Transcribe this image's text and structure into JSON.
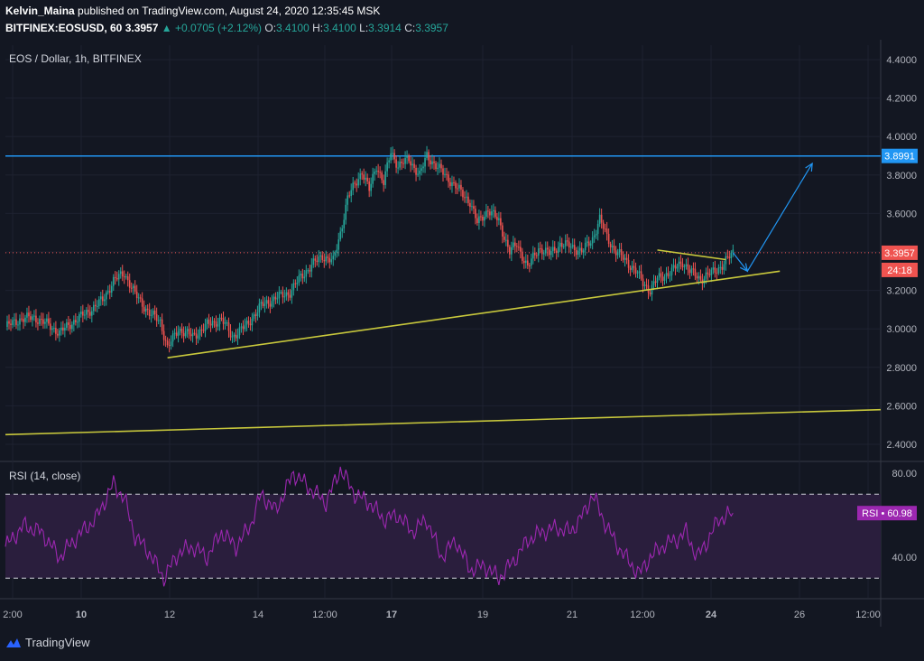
{
  "header": {
    "author": "Kelvin_Maina",
    "published": "published on TradingView.com, August 24, 2020 12:35:45 MSK",
    "symbol": "BITFINEX:EOSUSD, 60",
    "last": "3.3957",
    "change": "▲ +0.0705 (+2.12%)",
    "o_label": "O:",
    "o_value": "3.4100",
    "h_label": "H:",
    "h_value": "3.4100",
    "l_label": "L:",
    "l_value": "3.3914",
    "c_label": "C:",
    "c_value": "3.3957"
  },
  "main_pane": {
    "title": "EOS / Dollar, 1h, BITFINEX",
    "price_badge": "3.3957",
    "countdown_badge": "24:18",
    "resistance_badge": "3.8991"
  },
  "rsi_pane": {
    "title": "RSI (14, close)",
    "badge": "RSI • 60.98"
  },
  "brand": {
    "name": "TradingView",
    "icon": "tradingview-logo-icon"
  },
  "colors": {
    "background": "#131722",
    "up": "#26a69a",
    "down": "#ef5350",
    "trendline": "#c8c83c",
    "resistance": "#2196f3",
    "arrow": "#2196f3",
    "rsi": "#9c27b0",
    "rsi_band": "#2a1e3d"
  },
  "chart_data": [
    {
      "type": "candlestick",
      "title": "EOS / Dollar, 1h, BITFINEX",
      "y_ticks": [
        "4.4000",
        "4.2000",
        "4.0000",
        "3.8000",
        "3.6000",
        "3.4000",
        "3.2000",
        "3.0000",
        "2.8000",
        "2.6000",
        "2.4000"
      ],
      "ylim": [
        2.33,
        4.45
      ],
      "x_ticks": [
        "2:00",
        "10",
        "12",
        "14",
        "12:00",
        "17",
        "19",
        "21",
        "12:00",
        "24",
        "26",
        "12:00"
      ],
      "last_price": 3.3957,
      "horizontal_lines": [
        {
          "name": "resistance",
          "value": 3.8991,
          "style": "solid"
        },
        {
          "name": "last-price",
          "value": 3.3957,
          "style": "dotted"
        }
      ],
      "close_path": [
        [
          0,
          3.01
        ],
        [
          8,
          3.05
        ],
        [
          16,
          3.06
        ],
        [
          24,
          3.02
        ],
        [
          30,
          2.98
        ],
        [
          38,
          3.04
        ],
        [
          46,
          3.09
        ],
        [
          54,
          3.15
        ],
        [
          60,
          3.25
        ],
        [
          66,
          3.29
        ],
        [
          72,
          3.18
        ],
        [
          80,
          3.08
        ],
        [
          86,
          3.04
        ],
        [
          90,
          2.9
        ],
        [
          96,
          3.0
        ],
        [
          104,
          2.96
        ],
        [
          112,
          3.02
        ],
        [
          120,
          3.05
        ],
        [
          126,
          2.96
        ],
        [
          134,
          3.02
        ],
        [
          142,
          3.12
        ],
        [
          150,
          3.16
        ],
        [
          158,
          3.19
        ],
        [
          164,
          3.27
        ],
        [
          170,
          3.33
        ],
        [
          176,
          3.38
        ],
        [
          182,
          3.35
        ],
        [
          186,
          3.5
        ],
        [
          190,
          3.68
        ],
        [
          194,
          3.75
        ],
        [
          198,
          3.82
        ],
        [
          202,
          3.72
        ],
        [
          206,
          3.85
        ],
        [
          210,
          3.76
        ],
        [
          214,
          3.92
        ],
        [
          218,
          3.85
        ],
        [
          224,
          3.88
        ],
        [
          230,
          3.8
        ],
        [
          234,
          3.9
        ],
        [
          240,
          3.84
        ],
        [
          246,
          3.78
        ],
        [
          252,
          3.72
        ],
        [
          258,
          3.66
        ],
        [
          262,
          3.55
        ],
        [
          268,
          3.62
        ],
        [
          274,
          3.56
        ],
        [
          280,
          3.4
        ],
        [
          284,
          3.44
        ],
        [
          290,
          3.32
        ],
        [
          296,
          3.42
        ],
        [
          302,
          3.39
        ],
        [
          308,
          3.44
        ],
        [
          314,
          3.43
        ],
        [
          320,
          3.4
        ],
        [
          326,
          3.47
        ],
        [
          330,
          3.57
        ],
        [
          334,
          3.48
        ],
        [
          338,
          3.41
        ],
        [
          344,
          3.36
        ],
        [
          350,
          3.3
        ],
        [
          354,
          3.24
        ],
        [
          358,
          3.2
        ],
        [
          362,
          3.26
        ],
        [
          366,
          3.28
        ],
        [
          370,
          3.3
        ],
        [
          376,
          3.35
        ],
        [
          380,
          3.3
        ],
        [
          386,
          3.26
        ],
        [
          392,
          3.29
        ],
        [
          398,
          3.33
        ],
        [
          404,
          3.3957
        ]
      ],
      "trendlines": [
        {
          "name": "rising-support",
          "from": [
            90,
            2.85
          ],
          "to": [
            430,
            3.3
          ]
        },
        {
          "name": "long-term-support",
          "from": [
            0,
            2.45
          ],
          "to": [
            486,
            2.58
          ]
        },
        {
          "name": "descending-flag-top",
          "from": [
            362,
            3.41
          ],
          "to": [
            400,
            3.36
          ]
        }
      ],
      "projection": [
        [
          404,
          3.3957
        ],
        [
          412,
          3.3
        ],
        [
          448,
          3.86
        ]
      ]
    },
    {
      "type": "line",
      "title": "RSI (14, close)",
      "y_ticks": [
        "80.00",
        "40.00"
      ],
      "ylim": [
        25,
        85
      ],
      "bands": [
        70,
        30
      ],
      "last_value": 60.98,
      "path": [
        [
          0,
          45
        ],
        [
          10,
          55
        ],
        [
          20,
          52
        ],
        [
          30,
          40
        ],
        [
          40,
          50
        ],
        [
          50,
          58
        ],
        [
          60,
          75
        ],
        [
          66,
          68
        ],
        [
          72,
          50
        ],
        [
          80,
          42
        ],
        [
          88,
          30
        ],
        [
          96,
          42
        ],
        [
          104,
          45
        ],
        [
          112,
          40
        ],
        [
          120,
          52
        ],
        [
          128,
          45
        ],
        [
          136,
          55
        ],
        [
          142,
          70
        ],
        [
          150,
          62
        ],
        [
          160,
          80
        ],
        [
          170,
          72
        ],
        [
          178,
          66
        ],
        [
          186,
          82
        ],
        [
          194,
          70
        ],
        [
          202,
          66
        ],
        [
          210,
          58
        ],
        [
          218,
          60
        ],
        [
          226,
          52
        ],
        [
          234,
          58
        ],
        [
          242,
          40
        ],
        [
          250,
          48
        ],
        [
          258,
          34
        ],
        [
          266,
          36
        ],
        [
          274,
          30
        ],
        [
          282,
          38
        ],
        [
          290,
          48
        ],
        [
          298,
          52
        ],
        [
          306,
          54
        ],
        [
          314,
          52
        ],
        [
          322,
          62
        ],
        [
          326,
          70
        ],
        [
          332,
          58
        ],
        [
          338,
          48
        ],
        [
          346,
          38
        ],
        [
          352,
          32
        ],
        [
          358,
          40
        ],
        [
          366,
          46
        ],
        [
          372,
          48
        ],
        [
          378,
          52
        ],
        [
          384,
          40
        ],
        [
          390,
          48
        ],
        [
          396,
          58
        ],
        [
          404,
          60.98
        ]
      ]
    }
  ]
}
